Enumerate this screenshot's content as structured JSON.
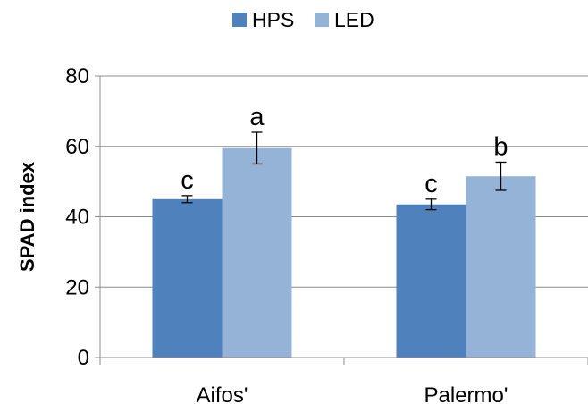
{
  "chart_data": {
    "type": "bar",
    "categories": [
      "Aifos'",
      "Palermo'"
    ],
    "series": [
      {
        "name": "HPS",
        "color": "#4f81bd",
        "values": [
          45,
          43.5
        ],
        "errors": [
          1,
          1.5
        ],
        "labels": [
          "c",
          "c"
        ]
      },
      {
        "name": "LED",
        "color": "#95b3d7",
        "values": [
          59.5,
          51.5
        ],
        "errors": [
          4.5,
          4
        ],
        "labels": [
          "a",
          "b"
        ]
      }
    ],
    "ylabel": "SPAD index",
    "ylim": [
      0,
      80
    ],
    "yticks": [
      0,
      20,
      40,
      60,
      80
    ],
    "grid": true,
    "legend": "top-center"
  }
}
